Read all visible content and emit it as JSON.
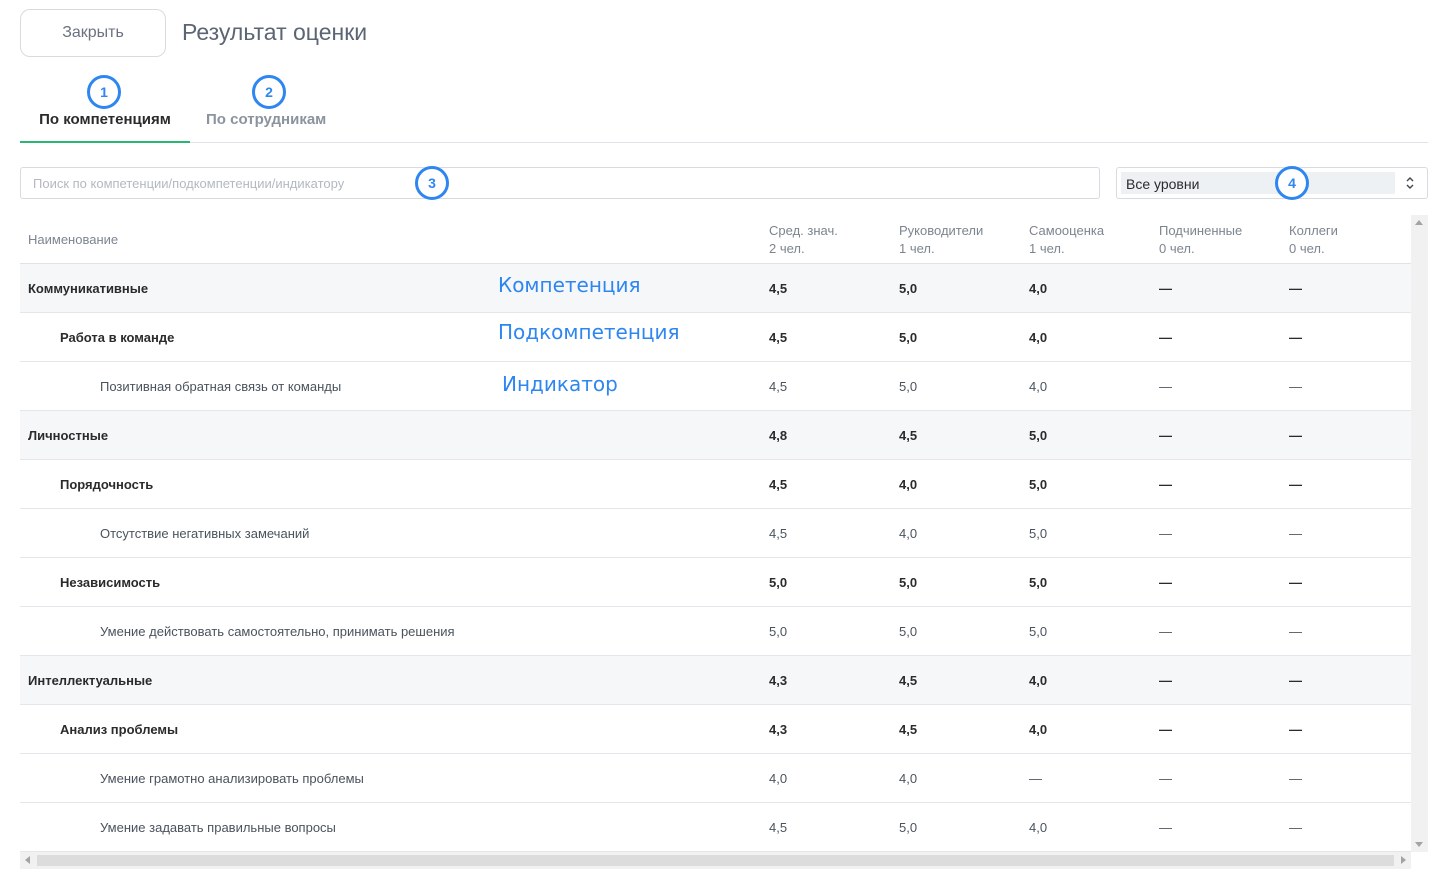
{
  "header": {
    "close_label": "Закрыть",
    "title": "Результат оценки"
  },
  "tabs": [
    {
      "label": "По компетенциям",
      "active": true,
      "marker": "1"
    },
    {
      "label": "По сотрудникам",
      "active": false,
      "marker": "2"
    }
  ],
  "search": {
    "placeholder": "Поиск по компетенции/подкомпетенции/индикатору",
    "marker": "3"
  },
  "level_filter": {
    "value": "Все уровни",
    "marker": "4"
  },
  "table": {
    "columns": [
      {
        "label": "Наименование",
        "sub": ""
      },
      {
        "label": "Сред. знач.",
        "sub": "2 чел."
      },
      {
        "label": "Руководители",
        "sub": "1 чел."
      },
      {
        "label": "Самооценка",
        "sub": "1 чел."
      },
      {
        "label": "Подчиненные",
        "sub": "0 чел."
      },
      {
        "label": "Коллеги",
        "sub": "0 чел."
      }
    ],
    "rows": [
      {
        "type": "competency",
        "name": "Коммуникативные",
        "values": [
          "4,5",
          "5,0",
          "4,0",
          "—",
          "—"
        ]
      },
      {
        "type": "subcompetency",
        "name": "Работа в команде",
        "values": [
          "4,5",
          "5,0",
          "4,0",
          "—",
          "—"
        ]
      },
      {
        "type": "indicator",
        "name": "Позитивная обратная связь от команды",
        "values": [
          "4,5",
          "5,0",
          "4,0",
          "—",
          "—"
        ]
      },
      {
        "type": "competency",
        "name": "Личностные",
        "values": [
          "4,8",
          "4,5",
          "5,0",
          "—",
          "—"
        ]
      },
      {
        "type": "subcompetency",
        "name": "Порядочность",
        "values": [
          "4,5",
          "4,0",
          "5,0",
          "—",
          "—"
        ]
      },
      {
        "type": "indicator",
        "name": "Отсутствие негативных замечаний",
        "values": [
          "4,5",
          "4,0",
          "5,0",
          "—",
          "—"
        ]
      },
      {
        "type": "subcompetency",
        "name": "Независимость",
        "values": [
          "5,0",
          "5,0",
          "5,0",
          "—",
          "—"
        ]
      },
      {
        "type": "indicator",
        "name": "Умение действовать самостоятельно, принимать решения",
        "values": [
          "5,0",
          "5,0",
          "5,0",
          "—",
          "—"
        ]
      },
      {
        "type": "competency",
        "name": "Интеллектуальные",
        "values": [
          "4,3",
          "4,5",
          "4,0",
          "—",
          "—"
        ]
      },
      {
        "type": "subcompetency",
        "name": "Анализ проблемы",
        "values": [
          "4,3",
          "4,5",
          "4,0",
          "—",
          "—"
        ]
      },
      {
        "type": "indicator",
        "name": "Умение грамотно анализировать проблемы",
        "values": [
          "4,0",
          "4,0",
          "—",
          "—",
          "—"
        ]
      },
      {
        "type": "indicator",
        "name": "Умение задавать правильные вопросы",
        "values": [
          "4,5",
          "5,0",
          "4,0",
          "—",
          "—"
        ]
      }
    ]
  },
  "annotations": [
    "Компетенция",
    "Подкомпетенция",
    "Индикатор"
  ],
  "colors": {
    "accent_tab": "#2bb673",
    "annotation_blue": "#2e86f0",
    "competency_row_bg": "#f5f7f9"
  }
}
